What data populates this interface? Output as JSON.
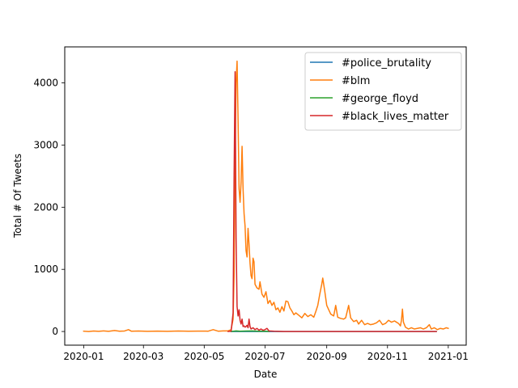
{
  "chart_data": {
    "type": "line",
    "title": "",
    "xlabel": "Date",
    "ylabel": "Total # Of Tweets",
    "x_ticks": [
      "2020-01",
      "2020-03",
      "2020-05",
      "2020-07",
      "2020-09",
      "2020-11",
      "2021-01"
    ],
    "x_tick_dates": [
      "2020-01-01",
      "2020-03-01",
      "2020-05-01",
      "2020-07-01",
      "2020-09-01",
      "2020-11-01",
      "2021-01-01"
    ],
    "xlim": [
      "2019-12-13",
      "2021-01-19"
    ],
    "y_ticks": [
      0,
      1000,
      2000,
      3000,
      4000
    ],
    "ylim": [
      -220,
      4580
    ],
    "grid": false,
    "legend_position": "top-right",
    "series": [
      {
        "name": "#police_brutality",
        "color": "#1f77b4",
        "points": [
          [
            "2020-05-28",
            0
          ],
          [
            "2020-12-20",
            0
          ]
        ]
      },
      {
        "name": "#blm",
        "color": "#ff7f0e",
        "points": [
          [
            "2020-01-01",
            5
          ],
          [
            "2020-01-06",
            0
          ],
          [
            "2020-01-11",
            8
          ],
          [
            "2020-01-16",
            2
          ],
          [
            "2020-01-21",
            10
          ],
          [
            "2020-01-26",
            3
          ],
          [
            "2020-02-01",
            15
          ],
          [
            "2020-02-06",
            4
          ],
          [
            "2020-02-11",
            8
          ],
          [
            "2020-02-15",
            30
          ],
          [
            "2020-02-18",
            4
          ],
          [
            "2020-02-25",
            8
          ],
          [
            "2020-03-05",
            2
          ],
          [
            "2020-03-15",
            6
          ],
          [
            "2020-03-25",
            3
          ],
          [
            "2020-04-05",
            8
          ],
          [
            "2020-04-15",
            4
          ],
          [
            "2020-04-25",
            6
          ],
          [
            "2020-05-05",
            5
          ],
          [
            "2020-05-10",
            30
          ],
          [
            "2020-05-15",
            5
          ],
          [
            "2020-05-20",
            10
          ],
          [
            "2020-05-25",
            10
          ],
          [
            "2020-05-28",
            30
          ],
          [
            "2020-05-30",
            200
          ],
          [
            "2020-05-31",
            900
          ],
          [
            "2020-06-01",
            2800
          ],
          [
            "2020-06-02",
            4000
          ],
          [
            "2020-06-03",
            4350
          ],
          [
            "2020-06-04",
            3400
          ],
          [
            "2020-06-05",
            2300
          ],
          [
            "2020-06-06",
            2080
          ],
          [
            "2020-06-07",
            2400
          ],
          [
            "2020-06-08",
            2980
          ],
          [
            "2020-06-09",
            2300
          ],
          [
            "2020-06-10",
            1900
          ],
          [
            "2020-06-11",
            1700
          ],
          [
            "2020-06-12",
            1300
          ],
          [
            "2020-06-13",
            1200
          ],
          [
            "2020-06-14",
            1660
          ],
          [
            "2020-06-15",
            1400
          ],
          [
            "2020-06-16",
            1100
          ],
          [
            "2020-06-17",
            900
          ],
          [
            "2020-06-18",
            850
          ],
          [
            "2020-06-19",
            1180
          ],
          [
            "2020-06-20",
            1120
          ],
          [
            "2020-06-21",
            760
          ],
          [
            "2020-06-23",
            700
          ],
          [
            "2020-06-25",
            680
          ],
          [
            "2020-06-26",
            800
          ],
          [
            "2020-06-28",
            600
          ],
          [
            "2020-06-30",
            550
          ],
          [
            "2020-07-02",
            640
          ],
          [
            "2020-07-04",
            450
          ],
          [
            "2020-07-06",
            500
          ],
          [
            "2020-07-08",
            420
          ],
          [
            "2020-07-10",
            470
          ],
          [
            "2020-07-12",
            350
          ],
          [
            "2020-07-14",
            380
          ],
          [
            "2020-07-16",
            310
          ],
          [
            "2020-07-18",
            400
          ],
          [
            "2020-07-20",
            330
          ],
          [
            "2020-07-22",
            490
          ],
          [
            "2020-07-24",
            480
          ],
          [
            "2020-07-26",
            380
          ],
          [
            "2020-07-28",
            330
          ],
          [
            "2020-07-30",
            270
          ],
          [
            "2020-08-01",
            300
          ],
          [
            "2020-08-04",
            260
          ],
          [
            "2020-08-07",
            220
          ],
          [
            "2020-08-10",
            290
          ],
          [
            "2020-08-13",
            240
          ],
          [
            "2020-08-16",
            270
          ],
          [
            "2020-08-19",
            230
          ],
          [
            "2020-08-21",
            320
          ],
          [
            "2020-08-23",
            420
          ],
          [
            "2020-08-25",
            600
          ],
          [
            "2020-08-27",
            760
          ],
          [
            "2020-08-28",
            860
          ],
          [
            "2020-08-30",
            650
          ],
          [
            "2020-09-01",
            420
          ],
          [
            "2020-09-03",
            350
          ],
          [
            "2020-09-05",
            280
          ],
          [
            "2020-09-08",
            250
          ],
          [
            "2020-09-10",
            420
          ],
          [
            "2020-09-12",
            230
          ],
          [
            "2020-09-15",
            210
          ],
          [
            "2020-09-18",
            200
          ],
          [
            "2020-09-20",
            220
          ],
          [
            "2020-09-23",
            420
          ],
          [
            "2020-09-25",
            220
          ],
          [
            "2020-09-28",
            160
          ],
          [
            "2020-10-01",
            180
          ],
          [
            "2020-10-03",
            120
          ],
          [
            "2020-10-06",
            180
          ],
          [
            "2020-10-09",
            110
          ],
          [
            "2020-10-12",
            130
          ],
          [
            "2020-10-15",
            110
          ],
          [
            "2020-10-18",
            120
          ],
          [
            "2020-10-21",
            140
          ],
          [
            "2020-10-24",
            180
          ],
          [
            "2020-10-27",
            110
          ],
          [
            "2020-10-30",
            130
          ],
          [
            "2020-11-02",
            180
          ],
          [
            "2020-11-05",
            150
          ],
          [
            "2020-11-08",
            170
          ],
          [
            "2020-11-10",
            150
          ],
          [
            "2020-11-12",
            130
          ],
          [
            "2020-11-14",
            90
          ],
          [
            "2020-11-15",
            180
          ],
          [
            "2020-11-16",
            360
          ],
          [
            "2020-11-17",
            150
          ],
          [
            "2020-11-19",
            70
          ],
          [
            "2020-11-22",
            40
          ],
          [
            "2020-11-25",
            60
          ],
          [
            "2020-11-28",
            40
          ],
          [
            "2020-12-01",
            50
          ],
          [
            "2020-12-04",
            60
          ],
          [
            "2020-12-07",
            40
          ],
          [
            "2020-12-10",
            60
          ],
          [
            "2020-12-13",
            110
          ],
          [
            "2020-12-15",
            40
          ],
          [
            "2020-12-18",
            60
          ],
          [
            "2020-12-21",
            30
          ],
          [
            "2020-12-24",
            50
          ],
          [
            "2020-12-27",
            40
          ],
          [
            "2020-12-30",
            60
          ],
          [
            "2021-01-01",
            50
          ]
        ]
      },
      {
        "name": "#george_floyd",
        "color": "#2ca02c",
        "points": [
          [
            "2020-05-28",
            0
          ],
          [
            "2020-06-02",
            10
          ],
          [
            "2020-06-06",
            5
          ],
          [
            "2020-06-12",
            8
          ],
          [
            "2020-06-18",
            10
          ],
          [
            "2020-06-24",
            5
          ],
          [
            "2020-06-30",
            5
          ],
          [
            "2020-07-05",
            2
          ]
        ]
      },
      {
        "name": "#black_lives_matter",
        "color": "#d62728",
        "points": [
          [
            "2020-05-25",
            0
          ],
          [
            "2020-05-28",
            5
          ],
          [
            "2020-05-30",
            300
          ],
          [
            "2020-05-31",
            2500
          ],
          [
            "2020-06-01",
            4180
          ],
          [
            "2020-06-02",
            1500
          ],
          [
            "2020-06-03",
            400
          ],
          [
            "2020-06-04",
            250
          ],
          [
            "2020-06-05",
            350
          ],
          [
            "2020-06-06",
            180
          ],
          [
            "2020-06-07",
            120
          ],
          [
            "2020-06-08",
            200
          ],
          [
            "2020-06-09",
            80
          ],
          [
            "2020-06-10",
            90
          ],
          [
            "2020-06-11",
            70
          ],
          [
            "2020-06-12",
            80
          ],
          [
            "2020-06-13",
            100
          ],
          [
            "2020-06-14",
            60
          ],
          [
            "2020-06-15",
            200
          ],
          [
            "2020-06-16",
            80
          ],
          [
            "2020-06-17",
            40
          ],
          [
            "2020-06-19",
            60
          ],
          [
            "2020-06-21",
            30
          ],
          [
            "2020-06-23",
            50
          ],
          [
            "2020-06-25",
            20
          ],
          [
            "2020-06-27",
            40
          ],
          [
            "2020-06-29",
            20
          ],
          [
            "2020-07-01",
            30
          ],
          [
            "2020-07-03",
            50
          ],
          [
            "2020-07-05",
            10
          ],
          [
            "2020-07-10",
            5
          ],
          [
            "2020-07-20",
            0
          ],
          [
            "2020-08-01",
            0
          ],
          [
            "2020-09-01",
            0
          ],
          [
            "2020-10-01",
            0
          ],
          [
            "2020-11-01",
            0
          ],
          [
            "2020-12-01",
            0
          ],
          [
            "2020-12-20",
            0
          ]
        ]
      }
    ]
  }
}
